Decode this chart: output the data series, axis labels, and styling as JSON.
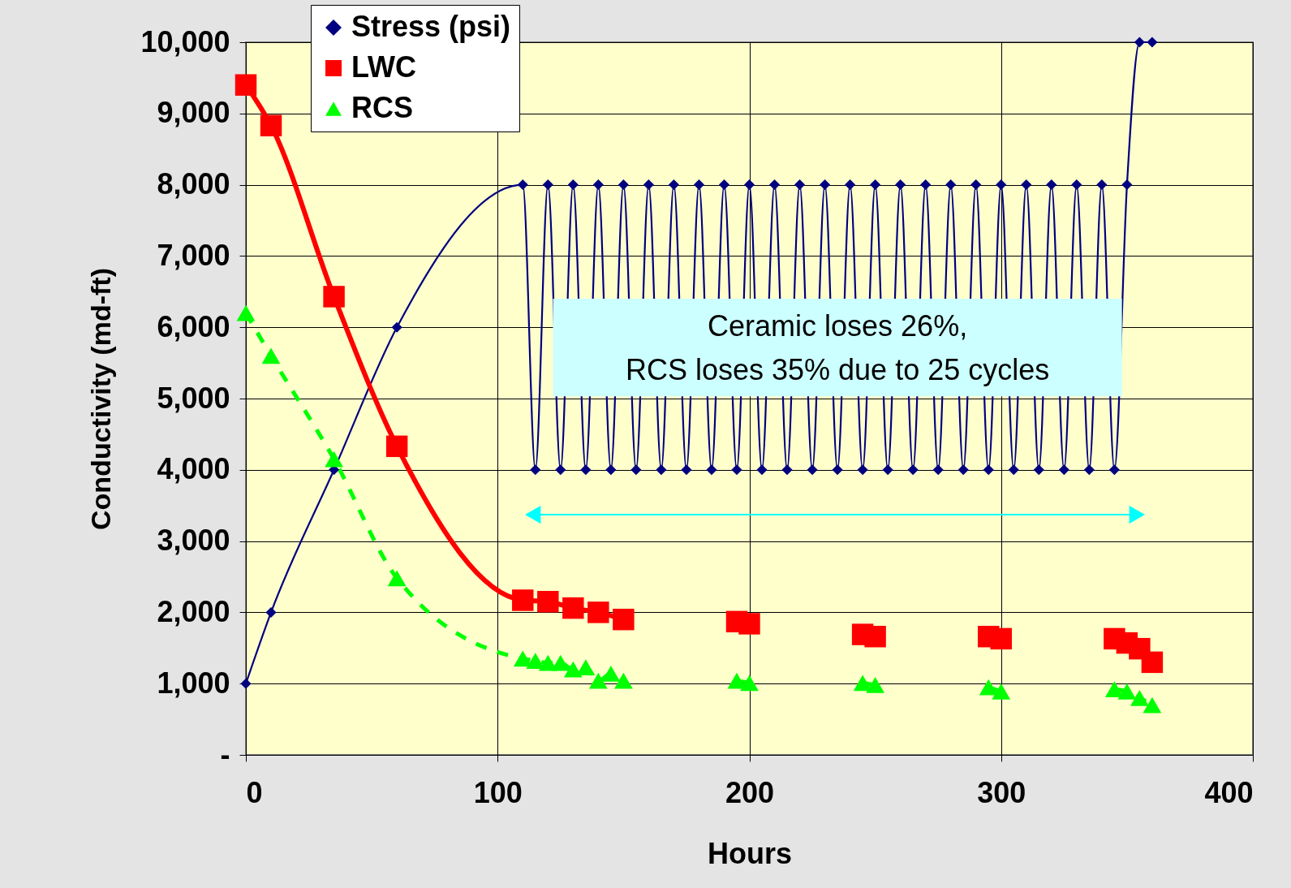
{
  "chart_data": {
    "type": "line",
    "xlabel": "Hours",
    "ylabel": "Conductivity (md-ft)",
    "xlim": [
      0,
      400
    ],
    "xticks": [
      0,
      100,
      200,
      300,
      400
    ],
    "ylim": [
      0,
      10000
    ],
    "yticks": [
      {
        "value": 0,
        "label": "-"
      },
      {
        "value": 1000,
        "label": "1,000"
      },
      {
        "value": 2000,
        "label": "2,000"
      },
      {
        "value": 3000,
        "label": "3,000"
      },
      {
        "value": 4000,
        "label": "4,000"
      },
      {
        "value": 5000,
        "label": "5,000"
      },
      {
        "value": 6000,
        "label": "6,000"
      },
      {
        "value": 7000,
        "label": "7,000"
      },
      {
        "value": 8000,
        "label": "8,000"
      },
      {
        "value": 9000,
        "label": "9,000"
      },
      {
        "value": 10000,
        "label": "10,000"
      }
    ],
    "grid": true,
    "legend": "top left",
    "annotations": [
      "Ceramic loses 26%,\nRCS loses 35% due to 25 cycles"
    ],
    "series": [
      {
        "name": "Stress (psi)",
        "color": "#000080",
        "marker": "diamond",
        "line_style": "solid",
        "x": [
          0,
          10,
          35,
          60,
          110,
          115,
          120,
          125,
          130,
          135,
          140,
          145,
          150,
          155,
          160,
          165,
          170,
          175,
          180,
          185,
          190,
          195,
          200,
          205,
          210,
          215,
          220,
          225,
          230,
          235,
          240,
          245,
          250,
          255,
          260,
          265,
          270,
          275,
          280,
          285,
          290,
          295,
          300,
          305,
          310,
          315,
          320,
          325,
          330,
          335,
          340,
          345,
          350,
          355,
          360
        ],
        "values": [
          1000,
          2000,
          4000,
          6000,
          8000,
          4000,
          8000,
          4000,
          8000,
          4000,
          8000,
          4000,
          8000,
          4000,
          8000,
          4000,
          8000,
          4000,
          8000,
          4000,
          8000,
          4000,
          8000,
          4000,
          8000,
          4000,
          8000,
          4000,
          8000,
          4000,
          8000,
          4000,
          8000,
          4000,
          8000,
          4000,
          8000,
          4000,
          8000,
          4000,
          8000,
          4000,
          8000,
          4000,
          8000,
          4000,
          8000,
          4000,
          8000,
          4000,
          8000,
          4000,
          8000,
          10000,
          10000
        ]
      },
      {
        "name": "LWC",
        "color": "#ff0000",
        "marker": "square",
        "line_style": "solid",
        "x": [
          0,
          10,
          35,
          60,
          110,
          120,
          130,
          140,
          150,
          170,
          195,
          200,
          225,
          245,
          250,
          275,
          295,
          300,
          325,
          345,
          350,
          355,
          360
        ],
        "values": [
          9400,
          8830,
          6430,
          4330,
          2170,
          2150,
          2060,
          2000,
          1900,
          null,
          1870,
          1840,
          null,
          1690,
          1660,
          null,
          1660,
          1630,
          null,
          1630,
          1570,
          1490,
          1300
        ]
      },
      {
        "name": "RCS",
        "color": "#00ff00",
        "marker": "triangle",
        "line_style": "dashed",
        "x": [
          0,
          10,
          35,
          60,
          110,
          115,
          120,
          125,
          130,
          135,
          140,
          145,
          150,
          170,
          195,
          200,
          225,
          245,
          250,
          275,
          295,
          300,
          325,
          345,
          350,
          355,
          360
        ],
        "values": [
          6200,
          5600,
          4150,
          2480,
          1350,
          1320,
          1290,
          1290,
          1200,
          1230,
          1040,
          1140,
          1040,
          null,
          1040,
          1010,
          null,
          1010,
          980,
          null,
          950,
          890,
          null,
          920,
          890,
          800,
          700
        ]
      }
    ]
  }
}
